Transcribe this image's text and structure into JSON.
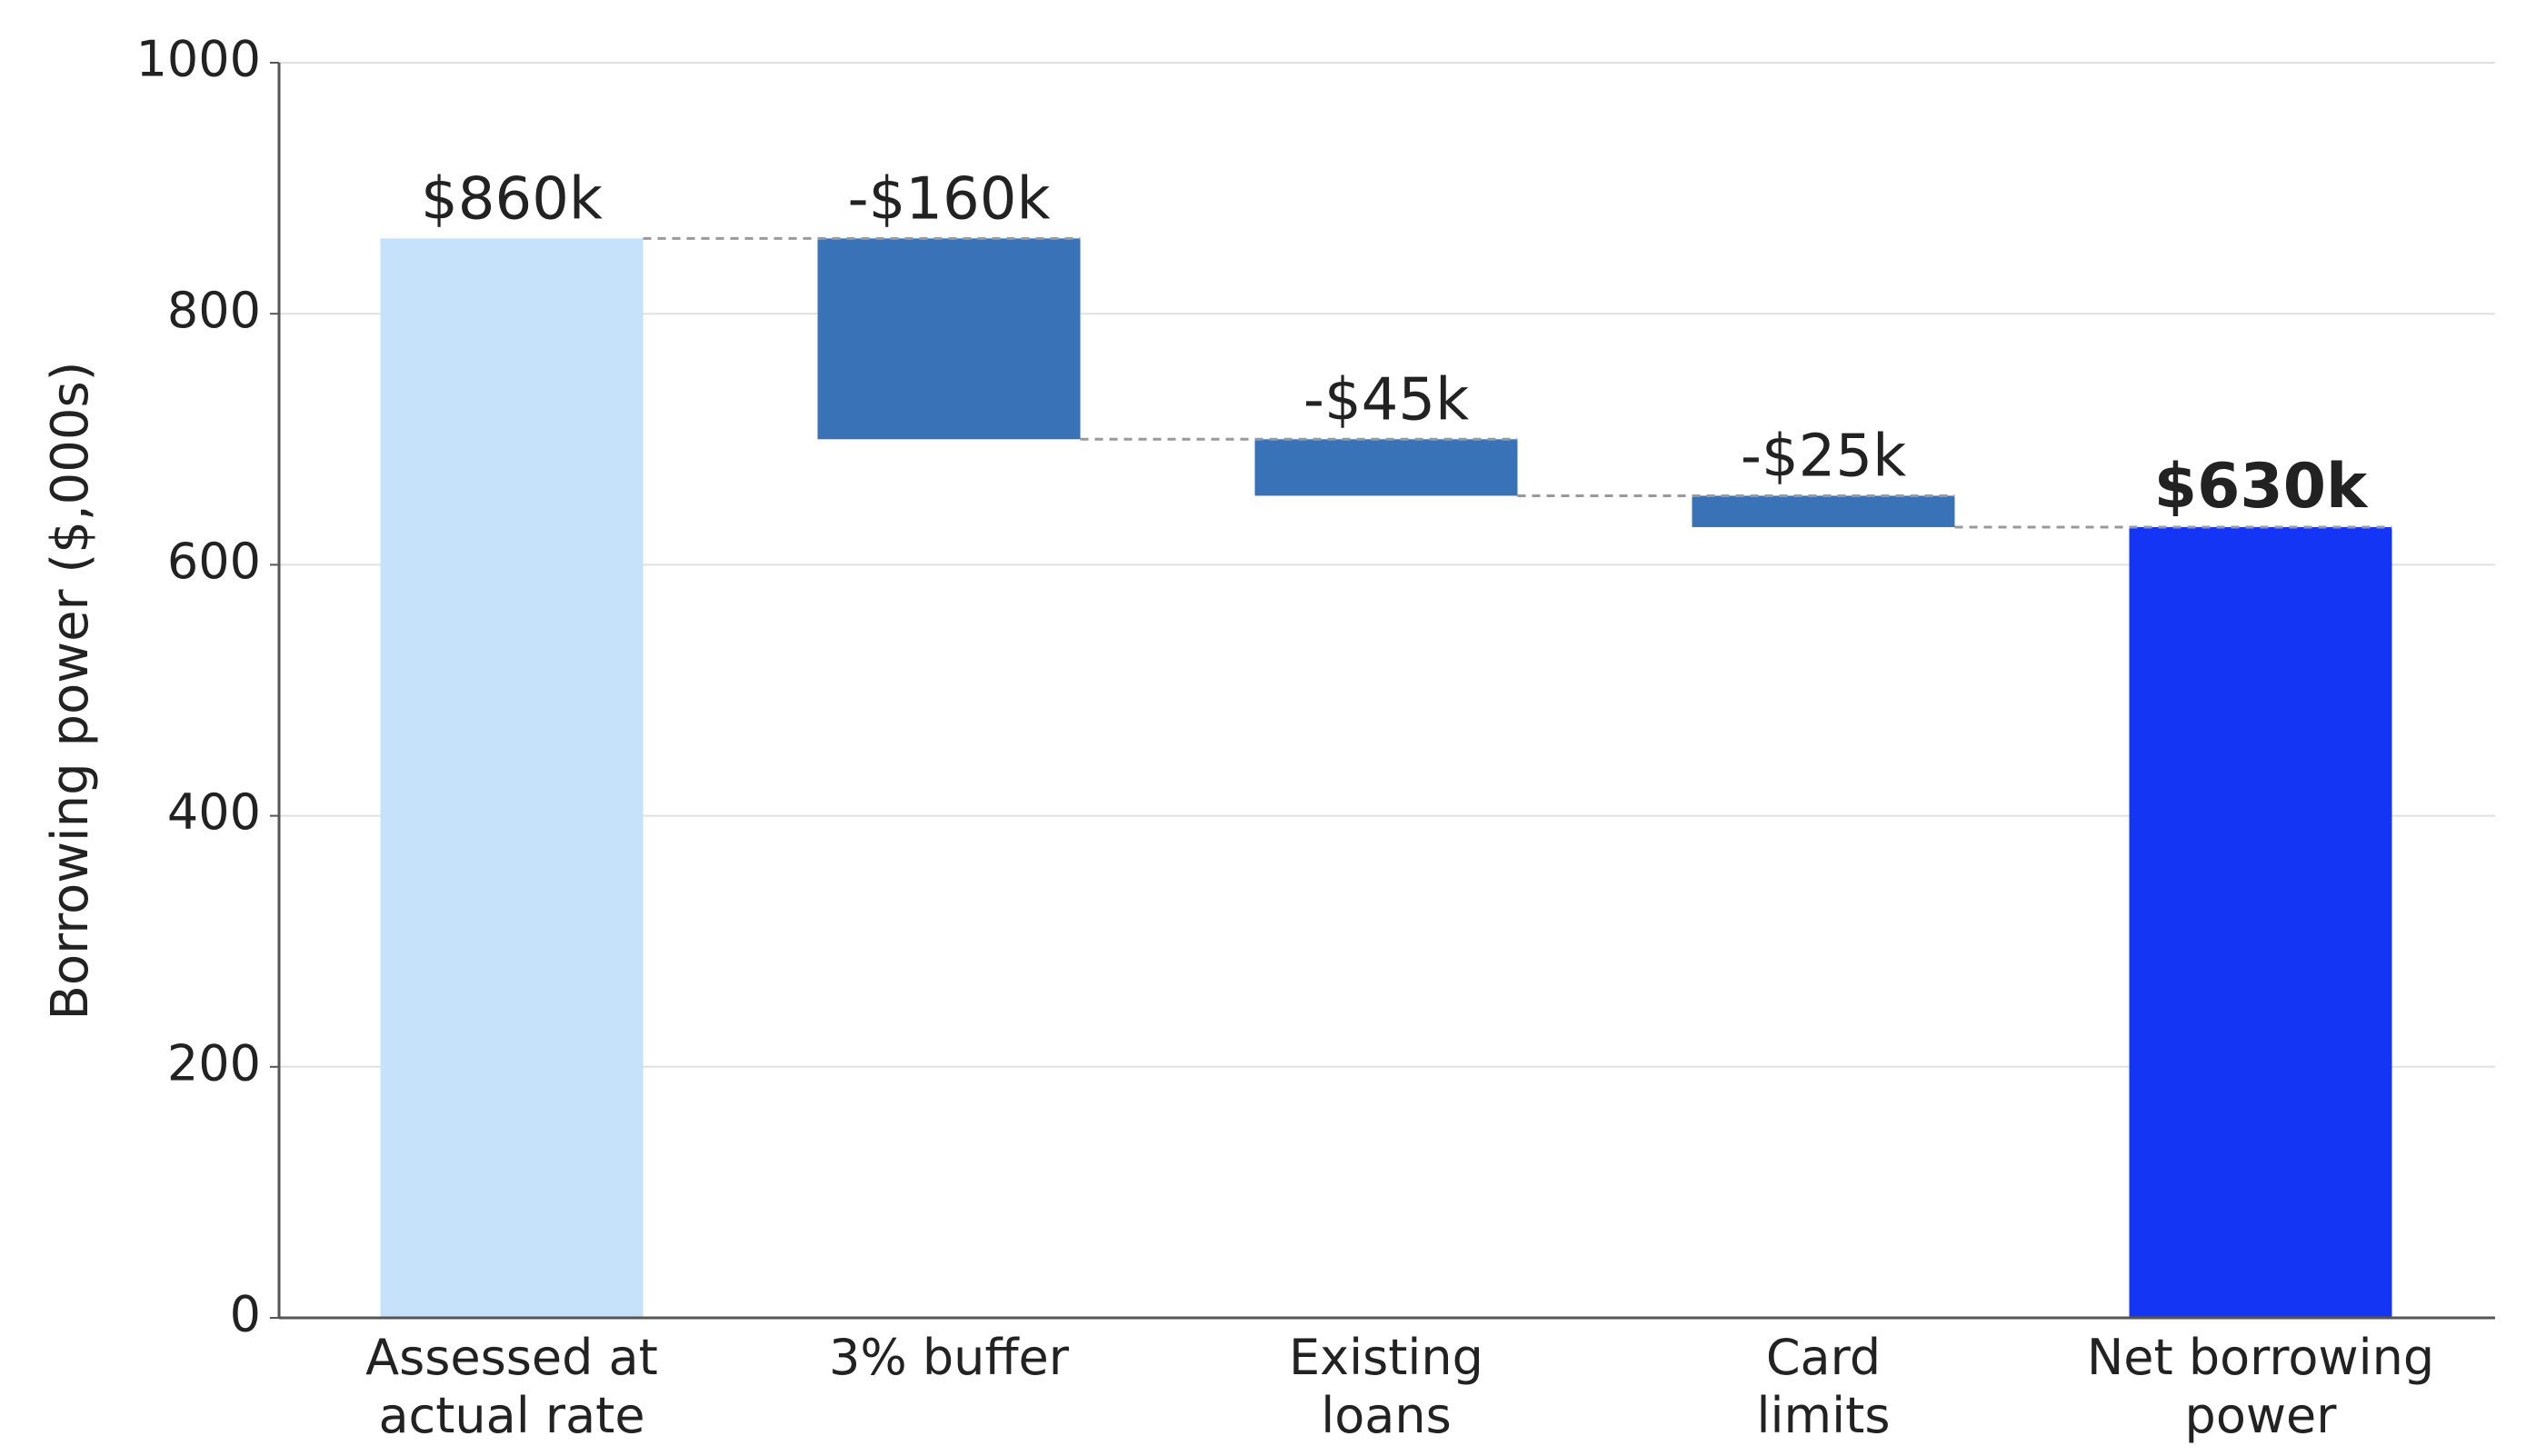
{
  "chart_data": {
    "type": "waterfall",
    "ylabel": "Borrowing power ($,000s)",
    "categories": [
      "Assessed at\nactual rate",
      "3% buffer",
      "Existing\nloans",
      "Card\nlimits",
      "Net borrowing\npower"
    ],
    "values": [
      860,
      -160,
      -45,
      -25,
      630
    ],
    "value_labels": [
      "$860k",
      "-$160k",
      "-$45k",
      "-$25k",
      "$630k"
    ],
    "measures": [
      "absolute",
      "relative",
      "relative",
      "relative",
      "total"
    ],
    "colors": [
      "#c5e2fa",
      "#3a72b8",
      "#3a72b8",
      "#3a72b8",
      "#1535f5"
    ],
    "ylim": [
      0,
      1000
    ],
    "yticks": [
      0,
      200,
      400,
      600,
      800,
      1000
    ],
    "grid": true
  }
}
